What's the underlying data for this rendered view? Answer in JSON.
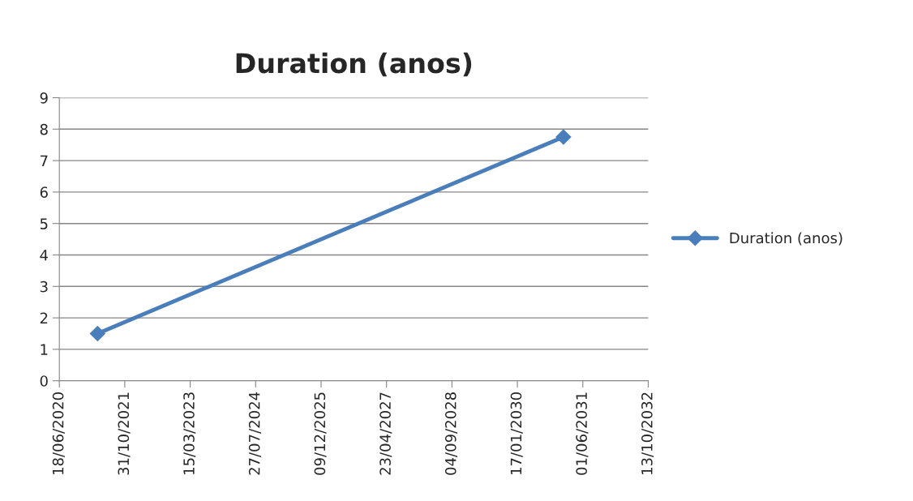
{
  "chart_data": {
    "type": "line",
    "title": "Duration (anos)",
    "x": [
      "2021-04-06",
      "2031-01-04"
    ],
    "series": [
      {
        "name": "Duration (anos)",
        "color": "#4a7ebb",
        "values": [
          1.5,
          7.75
        ]
      }
    ],
    "xlim": [
      "2020-06-18",
      "2032-10-13"
    ],
    "xticks": [
      {
        "value": "2020-06-18",
        "label": "18/06/2020"
      },
      {
        "value": "2021-10-31",
        "label": "31/10/2021"
      },
      {
        "value": "2023-03-15",
        "label": "15/03/2023"
      },
      {
        "value": "2024-07-27",
        "label": "27/07/2024"
      },
      {
        "value": "2025-12-09",
        "label": "09/12/2025"
      },
      {
        "value": "2027-04-23",
        "label": "23/04/2027"
      },
      {
        "value": "2028-09-04",
        "label": "04/09/2028"
      },
      {
        "value": "2030-01-17",
        "label": "17/01/2030"
      },
      {
        "value": "2031-06-01",
        "label": "01/06/2031"
      },
      {
        "value": "2032-10-13",
        "label": "13/10/2032"
      }
    ],
    "ylim": [
      0,
      9
    ],
    "yticks": [
      0,
      1,
      2,
      3,
      4,
      5,
      6,
      7,
      8,
      9
    ],
    "grid": "y",
    "legend": "right",
    "marker": "diamond",
    "line_style": "solid"
  }
}
